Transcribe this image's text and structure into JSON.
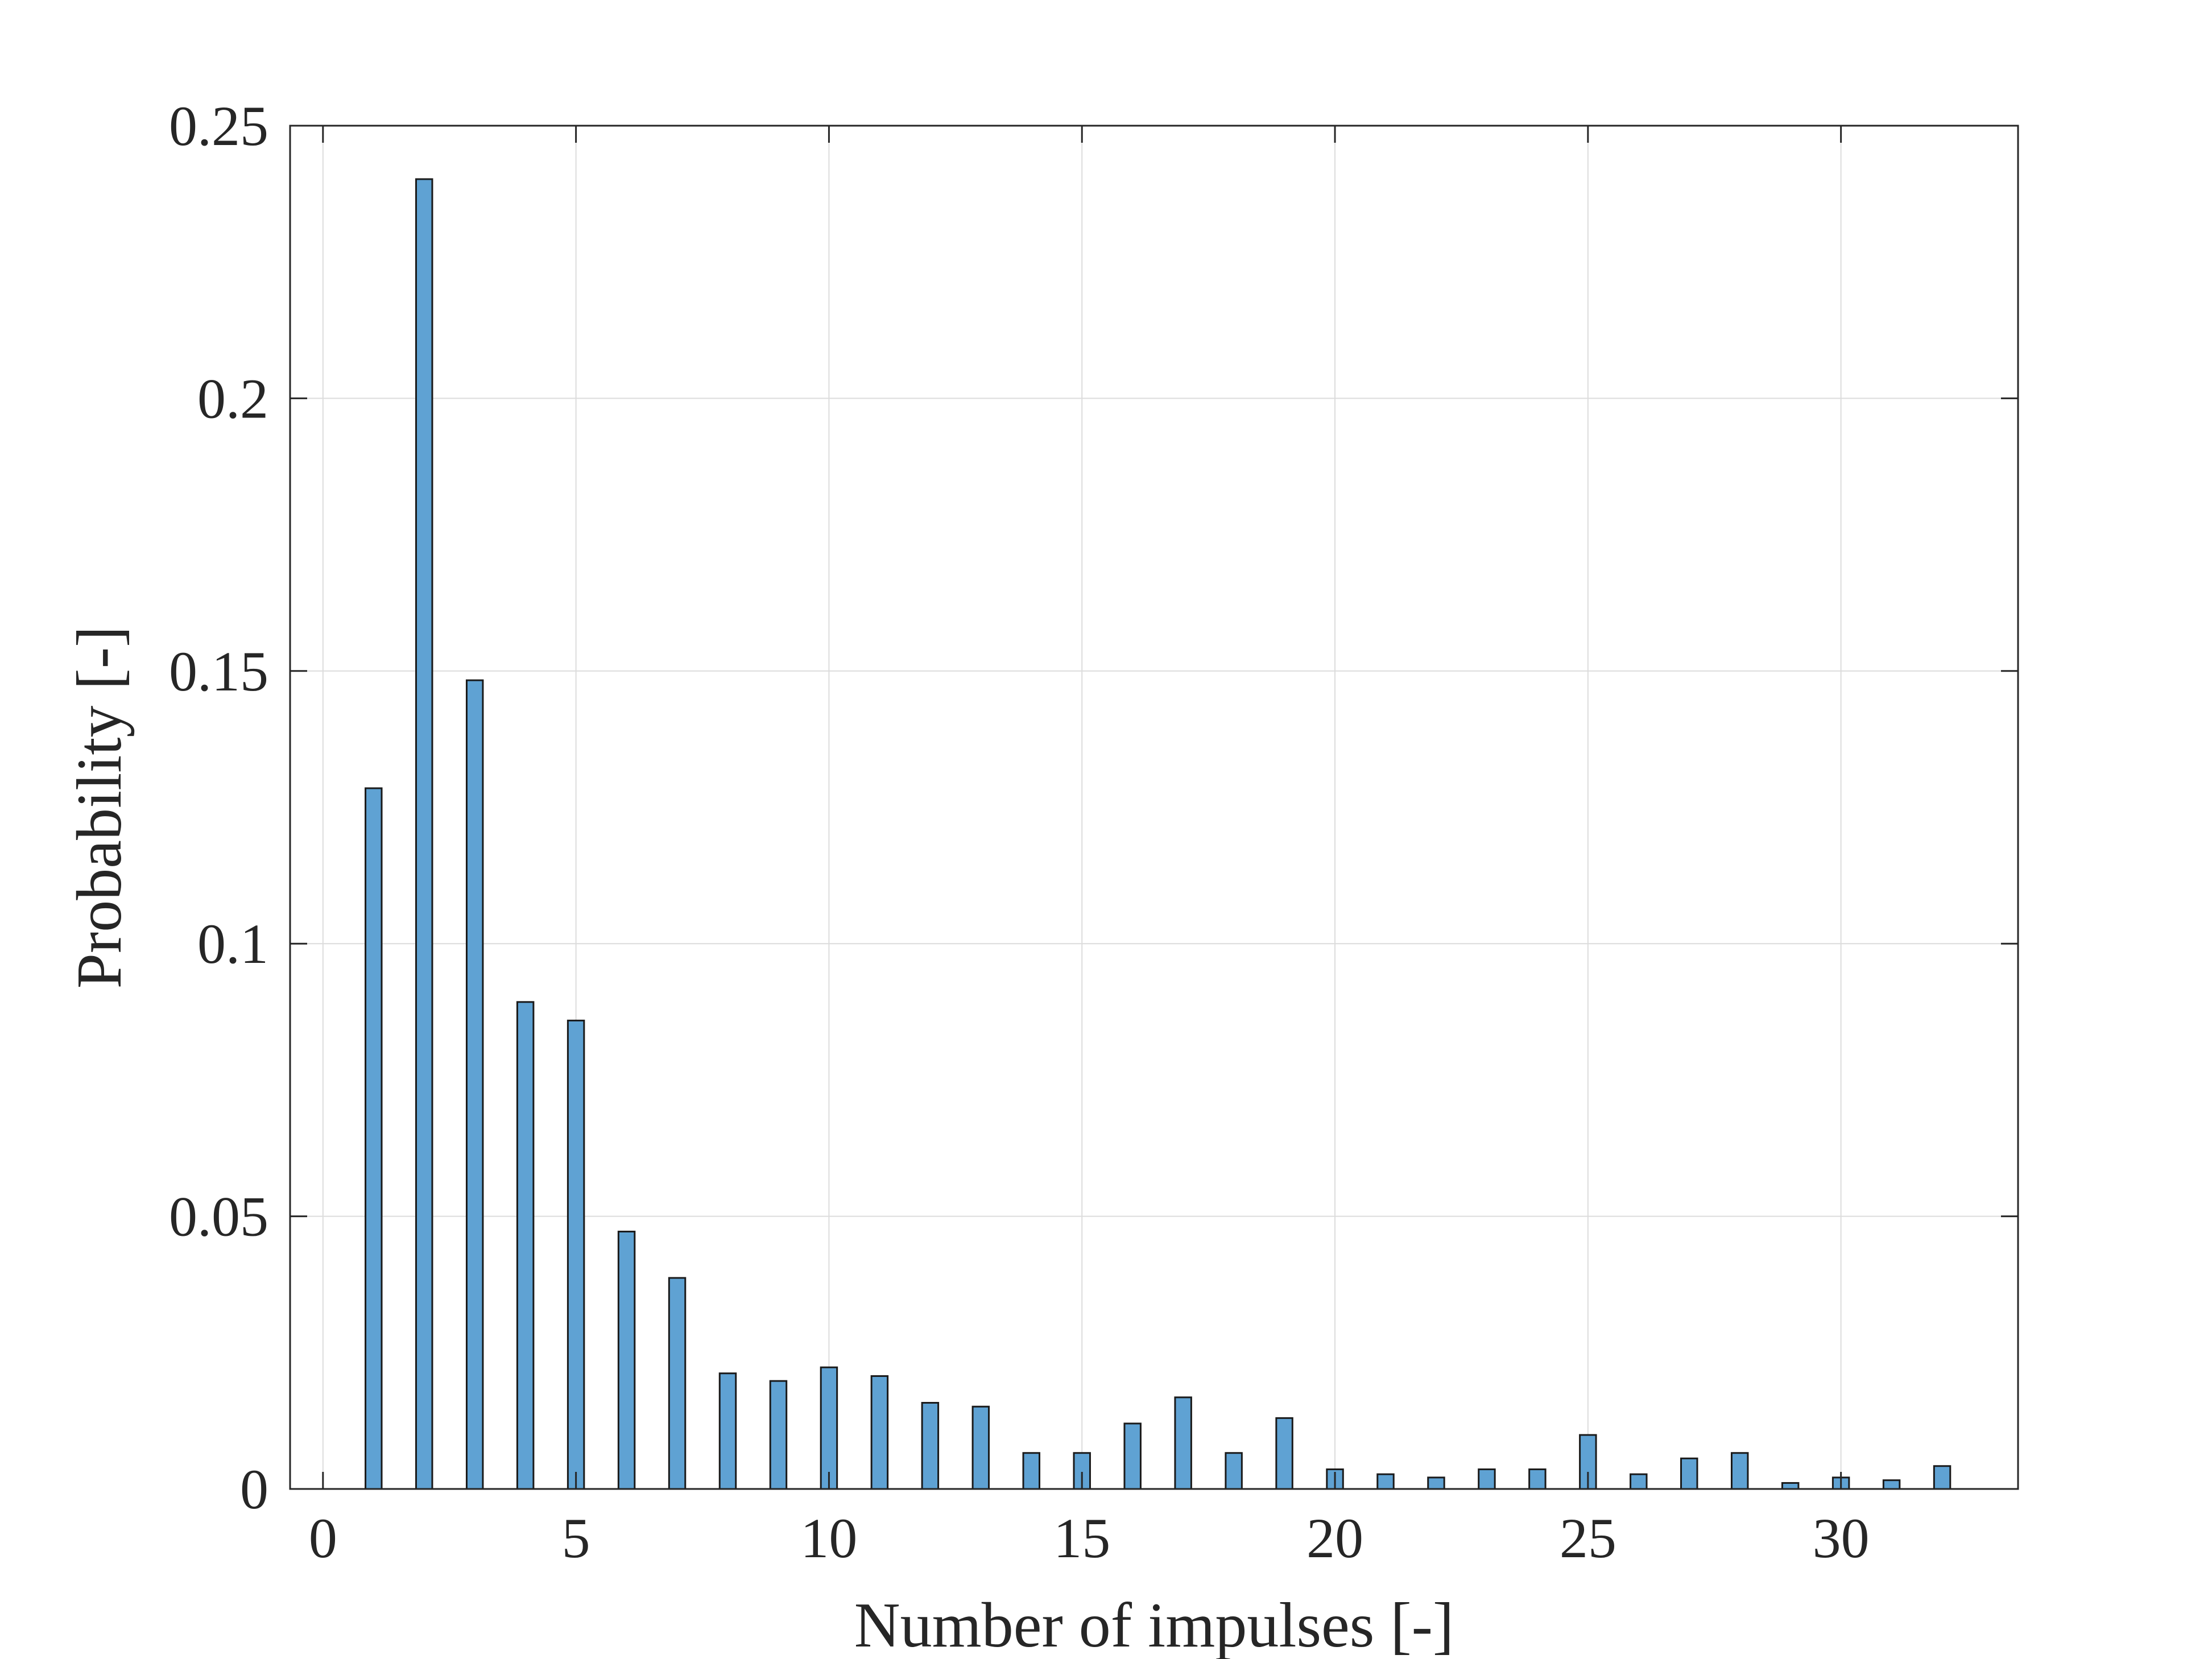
{
  "chart_data": {
    "type": "bar",
    "xlabel": "Number of impulses [-]",
    "ylabel": "Probability [-]",
    "xlim": [
      -0.65,
      33.5
    ],
    "ylim": [
      0,
      0.25
    ],
    "x_ticks": [
      0,
      5,
      10,
      15,
      20,
      25,
      30
    ],
    "y_ticks": [
      0,
      0.05,
      0.1,
      0.15,
      0.2,
      0.25
    ],
    "y_tick_labels": [
      "0",
      "0.05",
      "0.1",
      "0.15",
      "0.2",
      "0.25"
    ],
    "grid": true,
    "bar_color": "#5fa2d3",
    "bar_edge_color": "#1a1a1a",
    "x": [
      1,
      2,
      3,
      4,
      5,
      6,
      7,
      8,
      9,
      10,
      11,
      12,
      13,
      14,
      15,
      16,
      17,
      18,
      19,
      20,
      21,
      22,
      23,
      24,
      25,
      26,
      27,
      28,
      29,
      30,
      31,
      32
    ],
    "values": [
      0.1285,
      0.2402,
      0.1483,
      0.0893,
      0.0859,
      0.0472,
      0.0387,
      0.0212,
      0.0198,
      0.0223,
      0.0207,
      0.0158,
      0.0151,
      0.0066,
      0.0066,
      0.012,
      0.0168,
      0.0066,
      0.013,
      0.0036,
      0.0027,
      0.0021,
      0.0036,
      0.0036,
      0.0099,
      0.0027,
      0.0056,
      0.0066,
      0.0011,
      0.0021,
      0.0016,
      0.0042
    ]
  }
}
